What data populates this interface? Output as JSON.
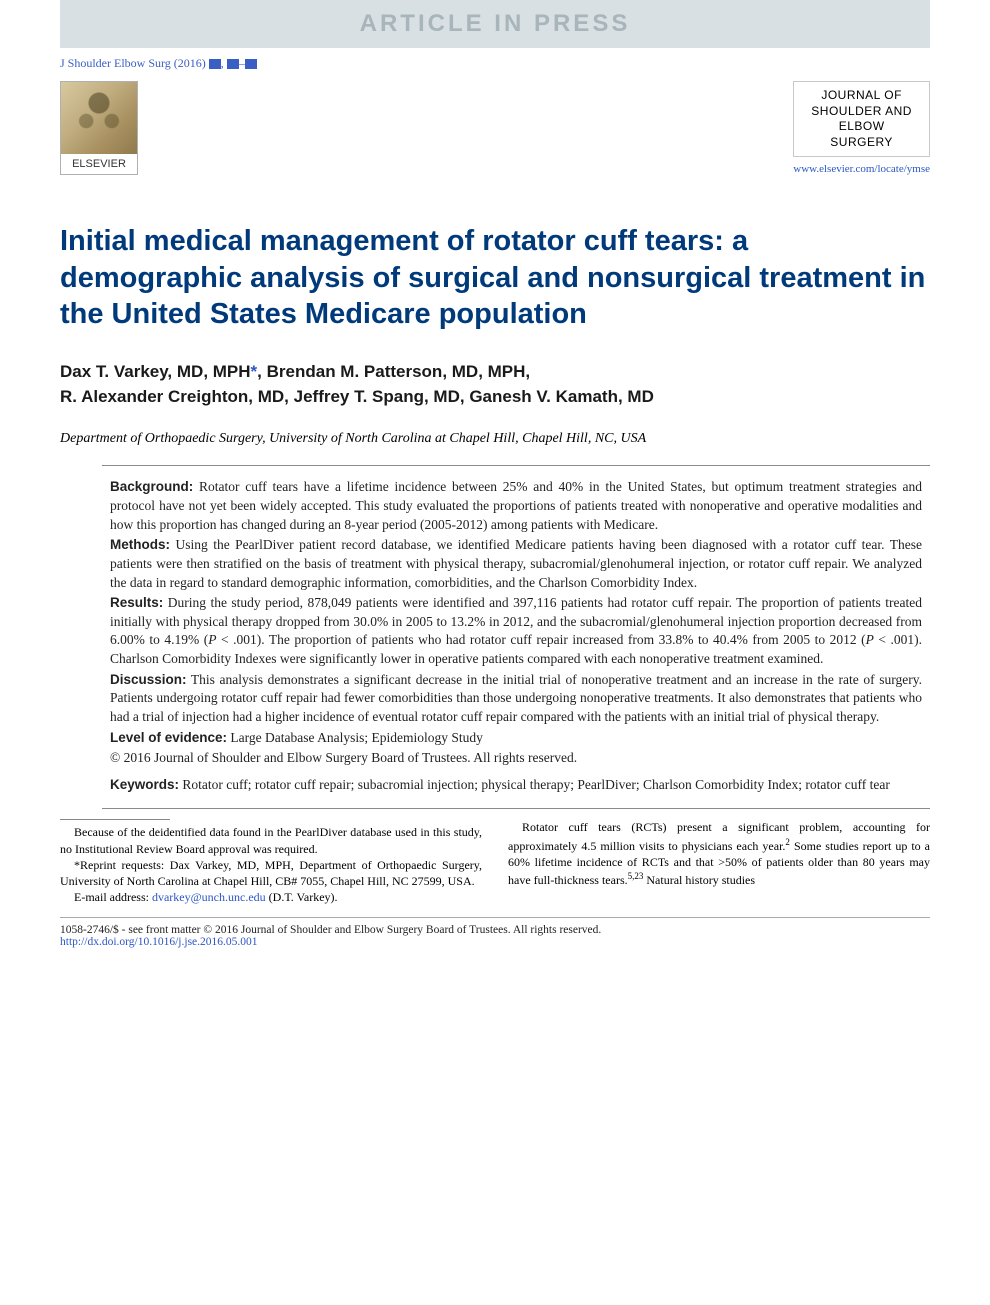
{
  "banner": "ARTICLE IN PRESS",
  "citation_prefix": "J Shoulder Elbow Surg (2016) ",
  "publisher": {
    "label": "ELSEVIER"
  },
  "journal_logo": {
    "line1": "JOURNAL OF",
    "line2": "SHOULDER AND",
    "line3": "ELBOW",
    "line4": "SURGERY"
  },
  "journal_url": "www.elsevier.com/locate/ymse",
  "title": "Initial medical management of rotator cuff tears: a demographic analysis of surgical and nonsurgical treatment in the United States Medicare population",
  "authors_line1": "Dax T. Varkey, MD, MPH",
  "authors_line1b": ", Brendan M. Patterson, MD, MPH,",
  "authors_line2": "R. Alexander Creighton, MD, Jeffrey T. Spang, MD, Ganesh V. Kamath, MD",
  "affiliation": "Department of Orthopaedic Surgery, University of North Carolina at Chapel Hill, Chapel Hill, NC, USA",
  "abstract": {
    "background_label": "Background:",
    "background": " Rotator cuff tears have a lifetime incidence between 25% and 40% in the United States, but optimum treatment strategies and protocol have not yet been widely accepted. This study evaluated the proportions of patients treated with nonoperative and operative modalities and how this proportion has changed during an 8-year period (2005-2012) among patients with Medicare.",
    "methods_label": "Methods:",
    "methods": " Using the PearlDiver patient record database, we identified Medicare patients having been diagnosed with a rotator cuff tear. These patients were then stratified on the basis of treatment with physical therapy, subacromial/glenohumeral injection, or rotator cuff repair. We analyzed the data in regard to standard demographic information, comorbidities, and the Charlson Comorbidity Index.",
    "results_label": "Results:",
    "results_a": " During the study period, 878,049 patients were identified and 397,116 patients had rotator cuff repair. The proportion of patients treated initially with physical therapy dropped from 30.0% in 2005 to 13.2% in 2012, and the subacromial/glenohumeral injection proportion decreased from 6.00% to 4.19% (",
    "results_p1": "P",
    "results_b": " < .001). The proportion of patients who had rotator cuff repair increased from 33.8% to 40.4% from 2005 to 2012 (",
    "results_p2": "P",
    "results_c": " < .001). Charlson Comorbidity Indexes were significantly lower in operative patients compared with each nonoperative treatment examined.",
    "discussion_label": "Discussion:",
    "discussion": " This analysis demonstrates a significant decrease in the initial trial of nonoperative treatment and an increase in the rate of surgery. Patients undergoing rotator cuff repair had fewer comorbidities than those undergoing nonoperative treatments. It also demonstrates that patients who had a trial of injection had a higher incidence of eventual rotator cuff repair compared with the patients with an initial trial of physical therapy.",
    "level_label": "Level of evidence:",
    "level": " Large Database Analysis; Epidemiology Study",
    "copyright": "© 2016 Journal of Shoulder and Elbow Surgery Board of Trustees. All rights reserved.",
    "keywords_label": "Keywords:",
    "keywords": " Rotator cuff; rotator cuff repair; subacromial injection; physical therapy; PearlDiver; Charlson Comorbidity Index; rotator cuff tear"
  },
  "footnotes": {
    "irb": "Because of the deidentified data found in the PearlDiver database used in this study, no Institutional Review Board approval was required.",
    "reprint": "*Reprint requests: Dax Varkey, MD, MPH, Department of Orthopaedic Surgery, University of North Carolina at Chapel Hill, CB# 7055, Chapel Hill, NC 27599, USA.",
    "email_label": "E-mail address: ",
    "email": "dvarkey@unch.unc.edu",
    "email_suffix": " (D.T. Varkey)."
  },
  "intro": {
    "p1a": "Rotator cuff tears (RCTs) present a significant problem, accounting for approximately 4.5 million visits to physicians each year.",
    "sup1": "2",
    "p1b": " Some studies report up to a 60% lifetime incidence of RCTs and that >50% of patients older than 80 years may have full-thickness tears.",
    "sup2": "5,23",
    "p1c": " Natural history studies"
  },
  "bottom": {
    "line1": "1058-2746/$ - see front matter © 2016 Journal of Shoulder and Elbow Surgery Board of Trustees. All rights reserved.",
    "doi": "http://dx.doi.org/10.1016/j.jse.2016.05.001"
  },
  "colors": {
    "banner_bg": "#d8e0e3",
    "banner_fg": "#a8b5bb",
    "title": "#003a7a",
    "link": "#2b56c5",
    "citation": "#3a5ec4"
  }
}
